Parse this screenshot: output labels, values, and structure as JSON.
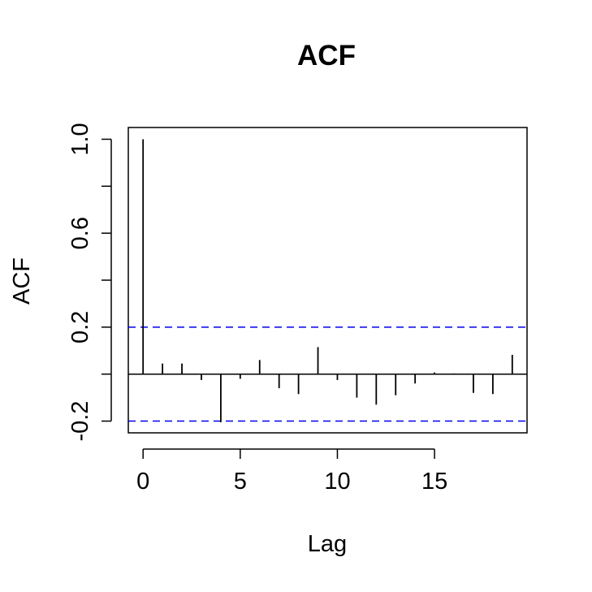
{
  "chart_data": {
    "type": "bar",
    "title": "ACF",
    "xlabel": "Lag",
    "ylabel": "ACF",
    "x": [
      0,
      1,
      2,
      3,
      4,
      5,
      6,
      7,
      8,
      9,
      10,
      11,
      12,
      13,
      14,
      15,
      16,
      17,
      18,
      19
    ],
    "values": [
      1.0,
      0.045,
      0.045,
      -0.025,
      -0.205,
      -0.02,
      0.06,
      -0.06,
      -0.085,
      0.115,
      -0.025,
      -0.1,
      -0.13,
      -0.09,
      -0.04,
      0.007,
      0.003,
      -0.08,
      -0.085,
      0.082
    ],
    "xlim": [
      -0.76,
      19.76
    ],
    "ylim": [
      -0.25,
      1.05
    ],
    "xticks": [
      0,
      5,
      10,
      15
    ],
    "xtick_labels": [
      "0",
      "5",
      "10",
      "15"
    ],
    "yticks": [
      -0.2,
      0.0,
      0.2,
      0.4,
      0.6,
      0.8,
      1.0
    ],
    "ytick_labels": [
      "-0.2",
      "",
      "0.2",
      "",
      "0.6",
      "",
      "1.0"
    ],
    "confidence_bounds": [
      0.2,
      -0.2
    ],
    "zero_line": 0,
    "grid": false,
    "colors": {
      "bars": "#000000",
      "bounds": "#0000ee",
      "axes": "#000000"
    }
  }
}
